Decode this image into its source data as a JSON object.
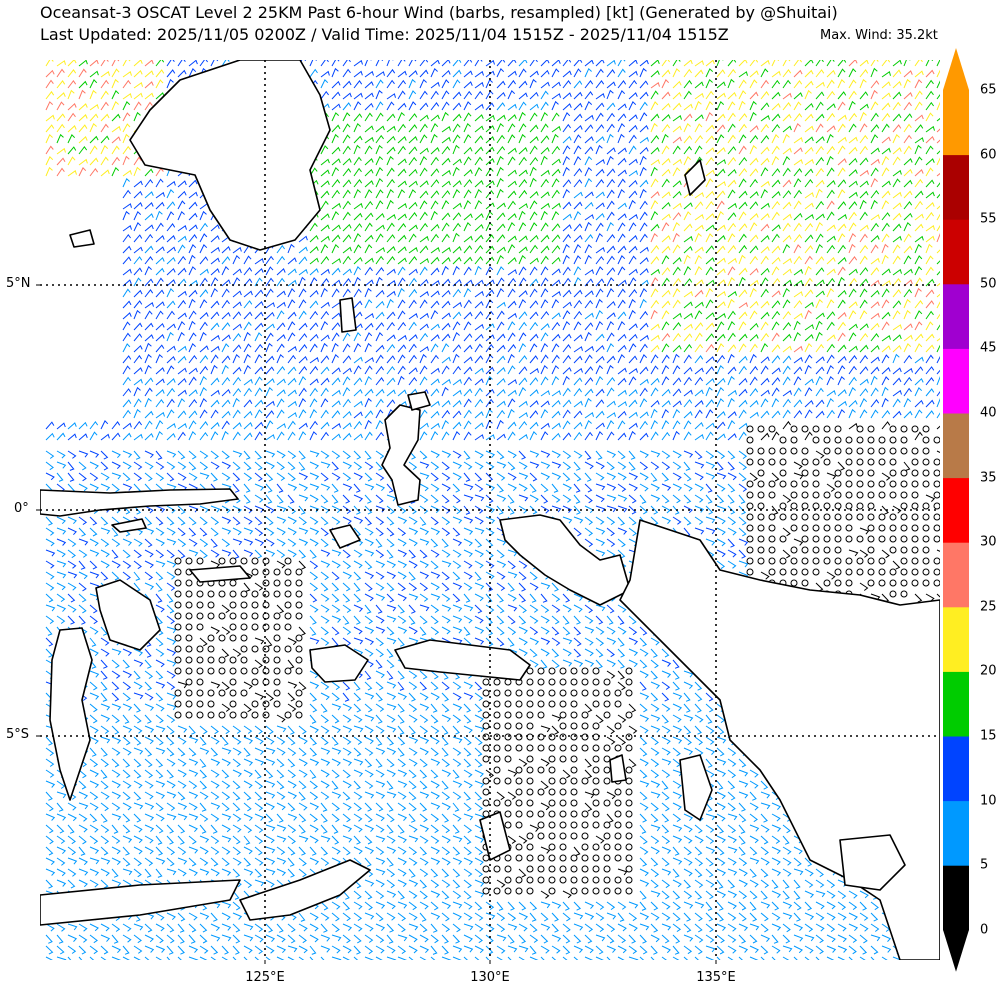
{
  "title": {
    "line1": "Oceansat-3 OSCAT Level 2 25KM Past 6-hour Wind (barbs, resampled) [kt] (Generated by @Shuitai)",
    "line2": "Last Updated: 2025/11/05 0200Z / Valid Time: 2025/11/04 1515Z - 2025/11/04 1515Z",
    "max_wind": "Max. Wind: 35.2kt"
  },
  "map": {
    "lat_labels": [
      "5°N",
      "0°",
      "5°S"
    ],
    "lon_labels": [
      "125°E",
      "130°E",
      "135°E"
    ],
    "grid_style": "dotted",
    "coastline_color": "#000000"
  },
  "colorbar": {
    "ticks": [
      "0",
      "5",
      "10",
      "15",
      "20",
      "25",
      "30",
      "35",
      "40",
      "45",
      "50",
      "55",
      "60",
      "65"
    ],
    "bins": [
      {
        "range": [
          0,
          5
        ],
        "color": "#000000"
      },
      {
        "range": [
          5,
          10
        ],
        "color": "#0099ff"
      },
      {
        "range": [
          10,
          15
        ],
        "color": "#0044ff"
      },
      {
        "range": [
          15,
          20
        ],
        "color": "#00cc00"
      },
      {
        "range": [
          20,
          25
        ],
        "color": "#ffee22"
      },
      {
        "range": [
          25,
          30
        ],
        "color": "#ff7766"
      },
      {
        "range": [
          30,
          35
        ],
        "color": "#ff0000"
      },
      {
        "range": [
          35,
          40
        ],
        "color": "#b87a48"
      },
      {
        "range": [
          40,
          45
        ],
        "color": "#ff00ff"
      },
      {
        "range": [
          45,
          50
        ],
        "color": "#a000d0"
      },
      {
        "range": [
          50,
          55
        ],
        "color": "#cc0000"
      },
      {
        "range": [
          55,
          60
        ],
        "color": "#aa0000"
      },
      {
        "range": [
          60,
          65
        ],
        "color": "#ff9900"
      }
    ],
    "under_color": "#000000",
    "over_color": "#ff9900"
  }
}
